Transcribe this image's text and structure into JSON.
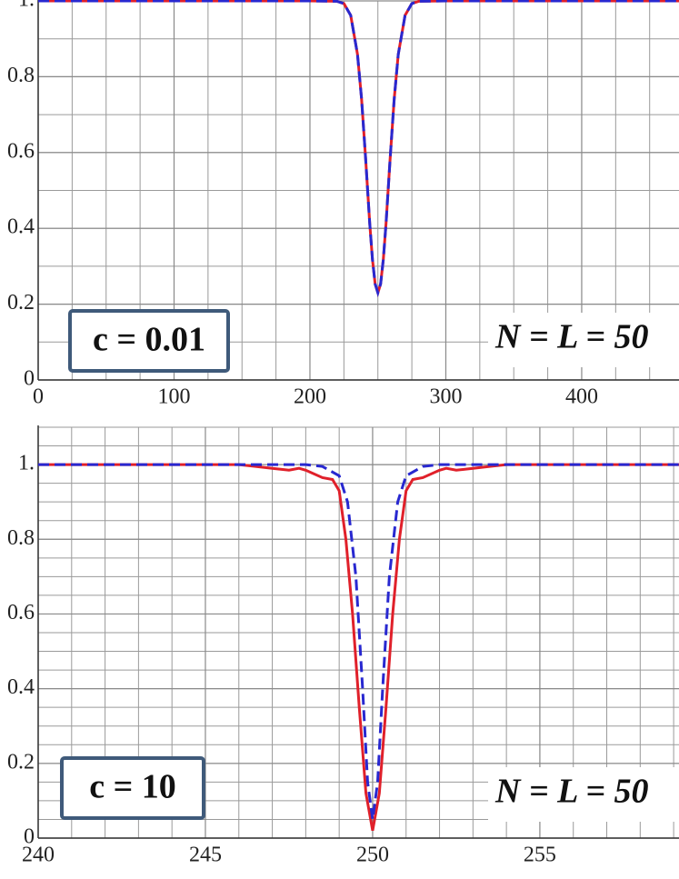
{
  "chart_data": [
    {
      "type": "line",
      "xlim": [
        0,
        471.6
      ],
      "ylim": [
        0,
        1.0
      ],
      "xticks": [
        0,
        100,
        200,
        300,
        400
      ],
      "yticks": [
        0,
        0.2,
        0.4,
        0.6,
        0.8,
        {
          "value": 1,
          "label": "1."
        }
      ],
      "grid": true,
      "xminor": 4,
      "yminor": 2,
      "series": [
        {
          "color": "#e0202a",
          "dash": false,
          "x": [
            0,
            200,
            220,
            225,
            230,
            235,
            238,
            241,
            244,
            246,
            248,
            250,
            252,
            254,
            256,
            259,
            262,
            265,
            270,
            275,
            280,
            300,
            471.6
          ],
          "values": [
            1,
            1,
            0.999,
            0.993,
            0.962,
            0.859,
            0.741,
            0.583,
            0.413,
            0.318,
            0.253,
            0.23,
            0.253,
            0.318,
            0.413,
            0.583,
            0.741,
            0.859,
            0.962,
            0.993,
            0.999,
            1,
            1
          ]
        },
        {
          "color": "#2828d0",
          "dash": true,
          "x": [
            0,
            200,
            220,
            225,
            230,
            235,
            238,
            241,
            244,
            246,
            248,
            250,
            252,
            254,
            256,
            259,
            262,
            265,
            270,
            275,
            280,
            300,
            471.6
          ],
          "values": [
            1,
            1,
            0.999,
            0.993,
            0.962,
            0.859,
            0.741,
            0.583,
            0.413,
            0.318,
            0.253,
            0.23,
            0.253,
            0.318,
            0.413,
            0.583,
            0.741,
            0.859,
            0.962,
            0.993,
            0.999,
            1,
            1
          ]
        }
      ],
      "annotations": [
        "c = 0.01",
        "N = L = 50"
      ]
    },
    {
      "type": "line",
      "xlim": [
        240,
        259.16
      ],
      "ylim": [
        0,
        1.1
      ],
      "xticks": [
        240,
        245,
        250,
        255
      ],
      "yticks": [
        0,
        0.2,
        0.4,
        0.6,
        0.8,
        {
          "value": 1,
          "label": "1."
        }
      ],
      "grid": true,
      "xminor": 5,
      "yminor": 4,
      "series": [
        {
          "color": "#e0202a",
          "dash": false,
          "x": [
            240,
            246,
            246.5,
            247,
            247.5,
            247.8,
            248,
            248.5,
            248.8,
            249,
            249.2,
            249.4,
            249.6,
            249.8,
            250,
            250.2,
            250.4,
            250.6,
            250.8,
            251,
            251.2,
            251.5,
            252,
            252.2,
            252.5,
            253,
            253.5,
            254,
            259.16
          ],
          "values": [
            1,
            1,
            0.995,
            0.99,
            0.985,
            0.99,
            0.985,
            0.965,
            0.96,
            0.93,
            0.8,
            0.6,
            0.35,
            0.12,
            0.02,
            0.12,
            0.35,
            0.6,
            0.8,
            0.93,
            0.96,
            0.965,
            0.985,
            0.99,
            0.985,
            0.99,
            0.995,
            1,
            1
          ]
        },
        {
          "color": "#2828d0",
          "dash": true,
          "x": [
            240,
            248,
            248.5,
            249,
            249.25,
            249.5,
            249.7,
            249.85,
            250,
            250.15,
            250.3,
            250.5,
            250.75,
            251,
            251.5,
            252,
            259.16
          ],
          "values": [
            1,
            1,
            0.995,
            0.97,
            0.9,
            0.7,
            0.4,
            0.15,
            0.05,
            0.15,
            0.4,
            0.7,
            0.9,
            0.97,
            0.995,
            1,
            1
          ]
        }
      ],
      "annotations": [
        "c = 10",
        "N = L = 50"
      ]
    }
  ]
}
